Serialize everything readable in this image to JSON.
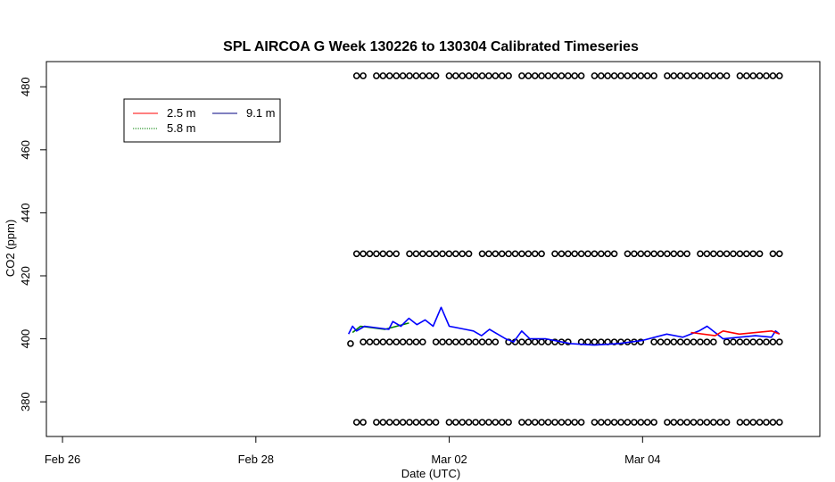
{
  "chart_data": {
    "type": "scatter",
    "title": "SPL AIRCOA G  Week 130226 to 130304  Calibrated Timeseries",
    "xlabel": "Date (UTC)",
    "ylabel": "CO2 (ppm)",
    "xlim": [
      "2013-02-25T20:00",
      "2013-03-05T20:00"
    ],
    "ylim": [
      369,
      488
    ],
    "x_ticks": [
      {
        "label": "Feb 26",
        "date": "2013-02-26"
      },
      {
        "label": "Feb 28",
        "date": "2013-02-28"
      },
      {
        "label": "Mar 02",
        "date": "2013-03-02"
      },
      {
        "label": "Mar 04",
        "date": "2013-03-04"
      }
    ],
    "y_ticks": [
      380,
      400,
      420,
      440,
      460,
      480
    ],
    "legend": {
      "placement": "top-left",
      "entries": [
        {
          "label": "2.5 m",
          "color": "#ff0000"
        },
        {
          "label": "5.8 m",
          "color": "#008000"
        },
        {
          "label": "9.1 m",
          "color": "#000080"
        }
      ]
    },
    "series": [
      {
        "name": "2.5 m",
        "kind": "line",
        "color": "#ff0000",
        "points": [
          [
            "2013-03-04T12:00",
            402.0
          ],
          [
            "2013-03-04T18:00",
            401.0
          ],
          [
            "2013-03-04T20:00",
            402.5
          ],
          [
            "2013-03-05T00:00",
            401.5
          ],
          [
            "2013-03-05T08:00",
            402.5
          ],
          [
            "2013-03-05T10:00",
            401.5
          ]
        ]
      },
      {
        "name": "5.8 m",
        "kind": "line",
        "color": "#008000",
        "points": [
          [
            "2013-03-01T00:00",
            402.0
          ],
          [
            "2013-03-01T02:00",
            404.0
          ],
          [
            "2013-03-01T08:00",
            403.0
          ],
          [
            "2013-03-01T14:00",
            405.0
          ]
        ]
      },
      {
        "name": "9.1 m",
        "kind": "line",
        "color": "#0000ff",
        "points": [
          [
            "2013-02-28T23:00",
            401.5
          ],
          [
            "2013-03-01T00:00",
            404.0
          ],
          [
            "2013-03-01T01:00",
            402.5
          ],
          [
            "2013-03-01T03:00",
            404.0
          ],
          [
            "2013-03-01T09:00",
            403.0
          ],
          [
            "2013-03-01T10:00",
            405.5
          ],
          [
            "2013-03-01T12:00",
            404.0
          ],
          [
            "2013-03-01T14:00",
            406.5
          ],
          [
            "2013-03-01T16:00",
            404.5
          ],
          [
            "2013-03-01T18:00",
            406.0
          ],
          [
            "2013-03-01T20:00",
            404.0
          ],
          [
            "2013-03-01T22:00",
            410.0
          ],
          [
            "2013-03-02T00:00",
            404.0
          ],
          [
            "2013-03-02T04:00",
            403.0
          ],
          [
            "2013-03-02T06:00",
            402.5
          ],
          [
            "2013-03-02T08:00",
            401.0
          ],
          [
            "2013-03-02T10:00",
            403.0
          ],
          [
            "2013-03-02T12:00",
            401.5
          ],
          [
            "2013-03-02T14:00",
            400.0
          ],
          [
            "2013-03-02T16:00",
            399.0
          ],
          [
            "2013-03-02T18:00",
            402.5
          ],
          [
            "2013-03-02T20:00",
            400.0
          ],
          [
            "2013-03-03T00:00",
            400.0
          ],
          [
            "2013-03-03T06:00",
            398.5
          ],
          [
            "2013-03-03T12:00",
            398.0
          ],
          [
            "2013-03-03T18:00",
            398.5
          ],
          [
            "2013-03-04T00:00",
            399.5
          ],
          [
            "2013-03-04T06:00",
            401.5
          ],
          [
            "2013-03-04T10:00",
            400.5
          ],
          [
            "2013-03-04T14:00",
            402.5
          ],
          [
            "2013-03-04T16:00",
            404.0
          ],
          [
            "2013-03-04T18:00",
            402.0
          ],
          [
            "2013-03-04T20:00",
            400.0
          ],
          [
            "2013-03-05T00:00",
            400.5
          ],
          [
            "2013-03-05T04:00",
            401.0
          ],
          [
            "2013-03-05T08:00",
            400.5
          ],
          [
            "2013-03-05T09:00",
            402.5
          ],
          [
            "2013-03-05T10:00",
            401.5
          ]
        ]
      },
      {
        "name": "",
        "kind": "points",
        "color": "#000000",
        "x_range": [
          "2013-03-01T01:00",
          "2013-03-05T10:00"
        ],
        "levels": [
          483.5,
          427.0,
          399.0,
          373.5
        ],
        "outlier": [
          "2013-02-28T23:30",
          398.5
        ]
      }
    ]
  }
}
